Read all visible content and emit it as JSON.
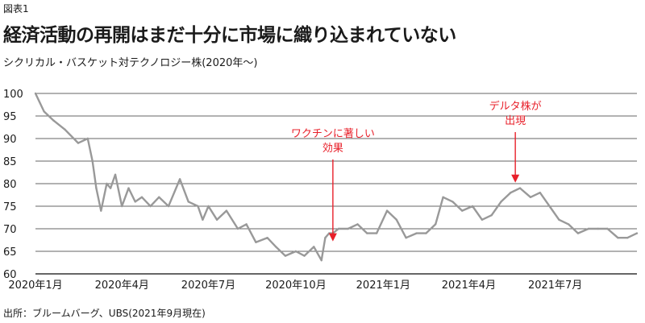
{
  "figure_label": "図表1",
  "title": "経済活動の再開はまだ十分に市場に織り込まれていない",
  "subtitle": "シクリカル・バスケット対テクノロジー株(2020年〜)",
  "source": "出所：ブルームバーグ、UBS(2021年9月現在)",
  "colors": {
    "line": "#999999",
    "grid": "#333333",
    "annotation": "#e8202a",
    "text": "#1a1a1a"
  },
  "chart_data": {
    "type": "line",
    "title": "",
    "xlabel": "",
    "ylabel": "",
    "ylim": [
      60,
      100
    ],
    "yticks": [
      60,
      65,
      70,
      75,
      80,
      85,
      90,
      95,
      100
    ],
    "xlim": [
      "2020-01-01",
      "2021-09-25"
    ],
    "xticks": [
      {
        "date": "2020-01-01",
        "label": "2020年1月"
      },
      {
        "date": "2020-04-01",
        "label": "2020年4月"
      },
      {
        "date": "2020-07-01",
        "label": "2020年7月"
      },
      {
        "date": "2020-10-01",
        "label": "2020年10月"
      },
      {
        "date": "2021-01-01",
        "label": "2021年1月"
      },
      {
        "date": "2021-04-01",
        "label": "2021年4月"
      },
      {
        "date": "2021-07-01",
        "label": "2021年7月"
      }
    ],
    "grid": "horizontal",
    "series": [
      {
        "x": [
          "2020-01-01",
          "2020-01-10",
          "2020-01-20",
          "2020-02-01",
          "2020-02-15",
          "2020-02-25",
          "2020-03-01",
          "2020-03-05",
          "2020-03-10",
          "2020-03-16",
          "2020-03-20",
          "2020-03-25",
          "2020-04-01",
          "2020-04-08",
          "2020-04-15",
          "2020-04-22",
          "2020-05-01",
          "2020-05-10",
          "2020-05-20",
          "2020-06-01",
          "2020-06-10",
          "2020-06-20",
          "2020-06-25",
          "2020-07-01",
          "2020-07-10",
          "2020-07-20",
          "2020-08-01",
          "2020-08-10",
          "2020-08-20",
          "2020-09-01",
          "2020-09-10",
          "2020-09-20",
          "2020-10-01",
          "2020-10-10",
          "2020-10-20",
          "2020-10-28",
          "2020-11-01",
          "2020-11-05",
          "2020-11-09",
          "2020-11-15",
          "2020-11-25",
          "2020-12-05",
          "2020-12-15",
          "2020-12-25",
          "2021-01-05",
          "2021-01-15",
          "2021-01-25",
          "2021-02-05",
          "2021-02-15",
          "2021-02-25",
          "2021-03-05",
          "2021-03-15",
          "2021-03-25",
          "2021-04-05",
          "2021-04-15",
          "2021-04-25",
          "2021-05-05",
          "2021-05-15",
          "2021-05-25",
          "2021-06-05",
          "2021-06-15",
          "2021-06-25",
          "2021-07-05",
          "2021-07-15",
          "2021-07-25",
          "2021-08-05",
          "2021-08-15",
          "2021-08-25",
          "2021-09-05",
          "2021-09-15",
          "2021-09-25"
        ],
        "values": [
          100,
          96,
          94,
          92,
          89,
          90,
          85,
          79,
          74,
          80,
          79,
          82,
          75,
          79,
          76,
          77,
          75,
          77,
          75,
          81,
          76,
          75,
          72,
          75,
          72,
          74,
          70,
          71,
          67,
          68,
          66,
          64,
          65,
          64,
          66,
          63,
          68,
          69,
          69,
          70,
          70,
          71,
          69,
          69,
          74,
          72,
          68,
          69,
          69,
          71,
          77,
          76,
          74,
          75,
          72,
          73,
          76,
          78,
          79,
          77,
          78,
          75,
          72,
          71,
          69,
          70,
          70,
          70,
          68,
          68,
          69
        ]
      }
    ],
    "annotations": [
      {
        "lines": [
          "ワクチンに著しい",
          "効果"
        ],
        "date": "2020-11-09",
        "arrow_tip": 66.5
      },
      {
        "lines": [
          "デルタ株が",
          "出現"
        ],
        "date": "2021-05-20",
        "arrow_tip": 79.5
      }
    ]
  }
}
